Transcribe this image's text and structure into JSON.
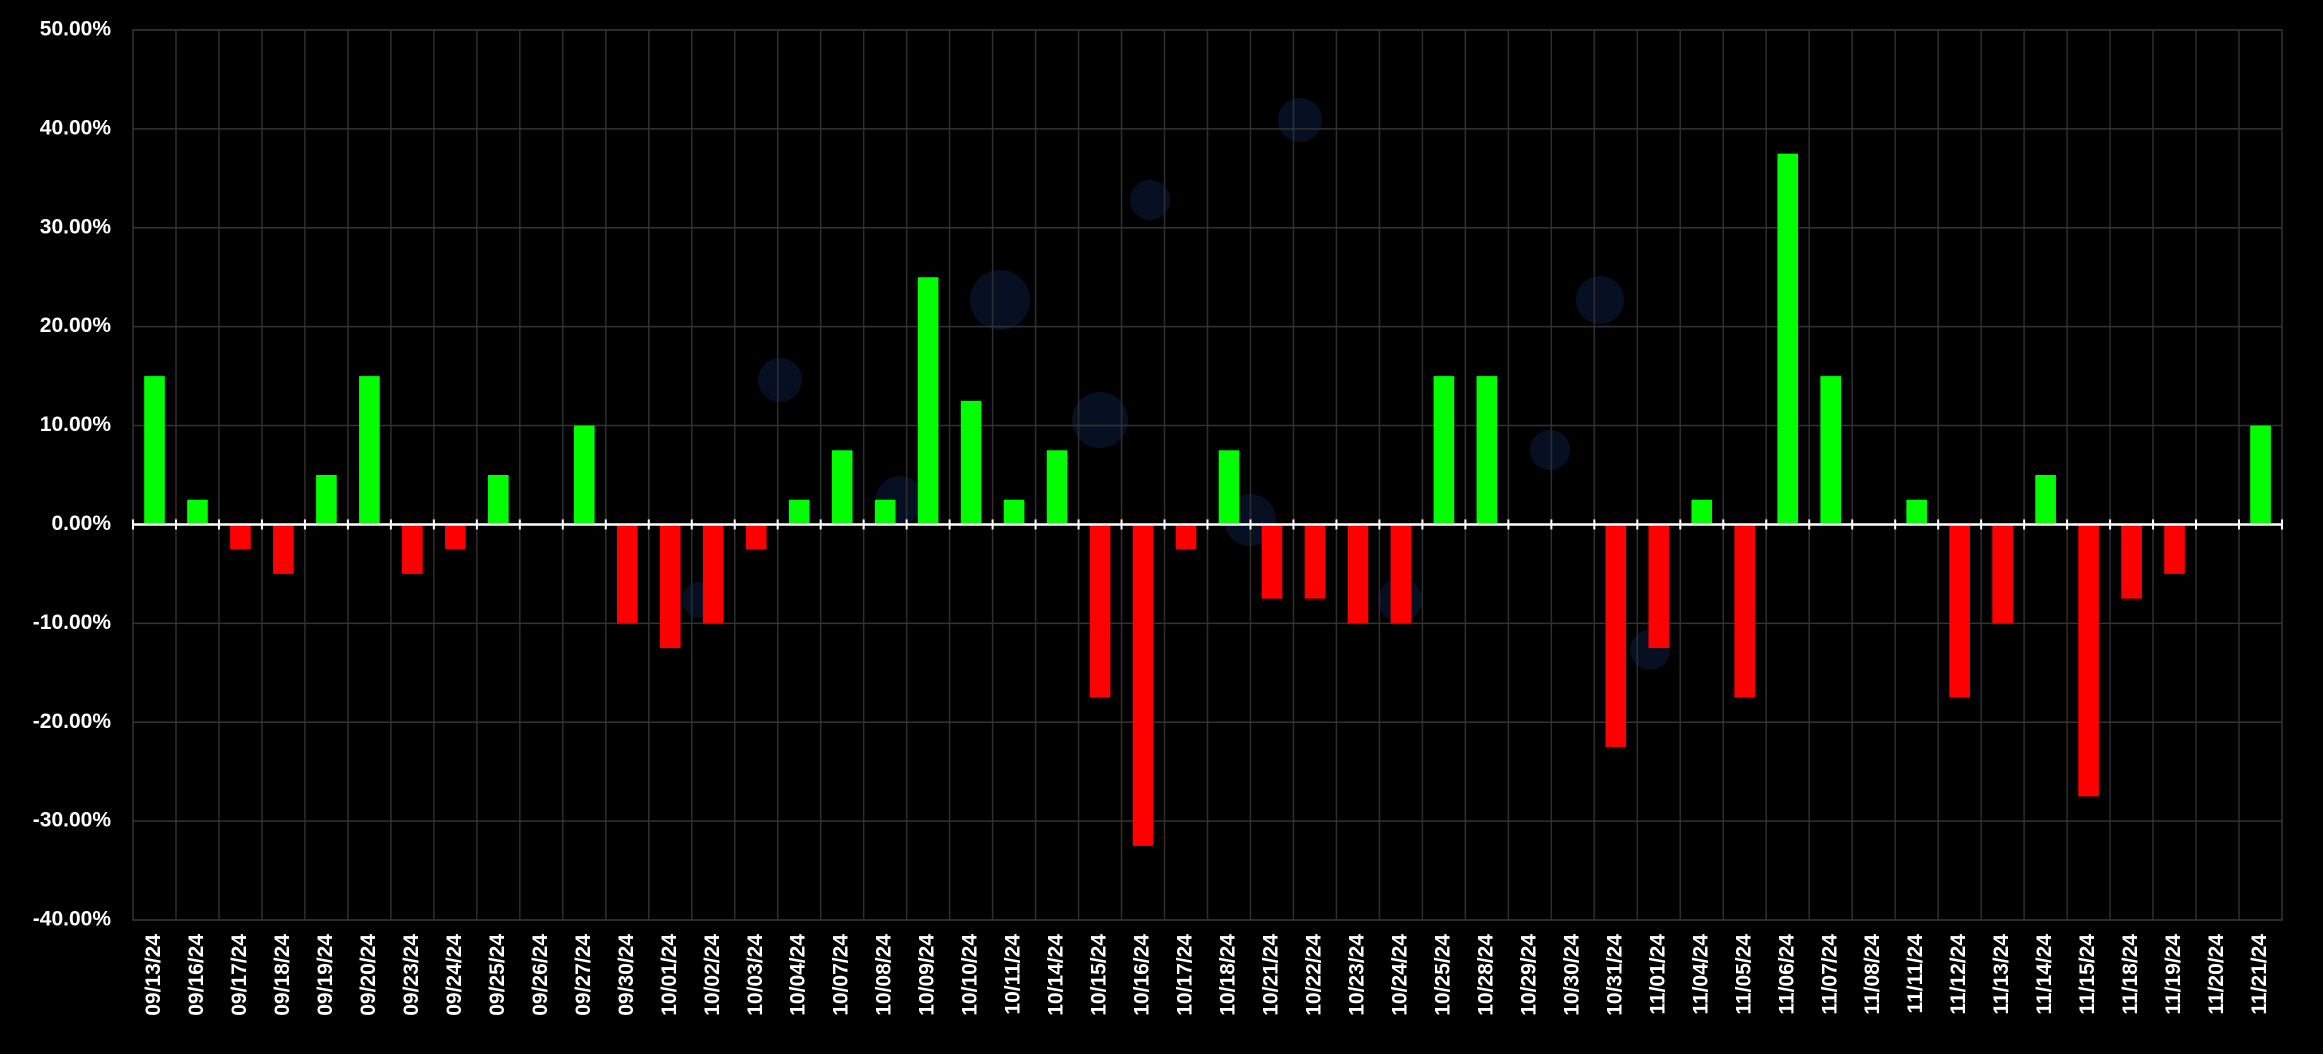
{
  "chart_data": {
    "type": "bar",
    "categories": [
      "09/13/24",
      "09/16/24",
      "09/17/24",
      "09/18/24",
      "09/19/24",
      "09/20/24",
      "09/23/24",
      "09/24/24",
      "09/25/24",
      "09/26/24",
      "09/27/24",
      "09/30/24",
      "10/01/24",
      "10/02/24",
      "10/03/24",
      "10/04/24",
      "10/07/24",
      "10/08/24",
      "10/09/24",
      "10/10/24",
      "10/11/24",
      "10/14/24",
      "10/15/24",
      "10/16/24",
      "10/17/24",
      "10/18/24",
      "10/21/24",
      "10/22/24",
      "10/23/24",
      "10/24/24",
      "10/25/24",
      "10/28/24",
      "10/29/24",
      "10/30/24",
      "10/31/24",
      "11/01/24",
      "11/04/24",
      "11/05/24",
      "11/06/24",
      "11/07/24",
      "11/08/24",
      "11/11/24",
      "11/12/24",
      "11/13/24",
      "11/14/24",
      "11/15/24",
      "11/18/24",
      "11/19/24",
      "11/20/24",
      "11/21/24"
    ],
    "values": [
      15,
      2.5,
      -2.5,
      -5,
      5,
      15,
      -5,
      -2.5,
      5,
      0,
      10,
      -10,
      -12.5,
      -10,
      -2.5,
      2.5,
      7.5,
      2.5,
      25,
      12.5,
      2.5,
      7.5,
      -17.5,
      -32.5,
      -2.5,
      7.5,
      -7.5,
      -7.5,
      -10,
      -10,
      15,
      15,
      0,
      0,
      -22.5,
      -12.5,
      2.5,
      -17.5,
      37.5,
      15,
      0,
      2.5,
      -17.5,
      -10,
      5,
      -27.5,
      -7.5,
      -5,
      0,
      10
    ],
    "positive_color": "#00ff00",
    "negative_color": "#ff0000",
    "ylim": [
      -40,
      50
    ],
    "yticks": [
      {
        "value": -40,
        "label": "-40.00%"
      },
      {
        "value": -30,
        "label": "-30.00%"
      },
      {
        "value": -20,
        "label": "-20.00%"
      },
      {
        "value": -10,
        "label": "-10.00%"
      },
      {
        "value": 0,
        "label": "0.00%"
      },
      {
        "value": 10,
        "label": "10.00%"
      },
      {
        "value": 20,
        "label": "20.00%"
      },
      {
        "value": 30,
        "label": "30.00%"
      },
      {
        "value": 40,
        "label": "40.00%"
      },
      {
        "value": 50,
        "label": "50.00%"
      }
    ],
    "grid": true
  }
}
